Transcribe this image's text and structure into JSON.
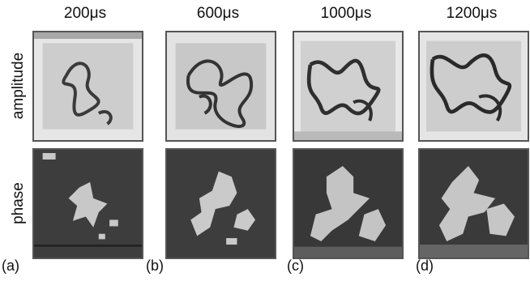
{
  "figure": {
    "columns": [
      {
        "time_label": "200μs",
        "panel_label": "(a)"
      },
      {
        "time_label": "600μs",
        "panel_label": "(b)"
      },
      {
        "time_label": "1000μs",
        "panel_label": "(c)"
      },
      {
        "time_label": "1200μs",
        "panel_label": "(d)"
      }
    ],
    "rows": [
      {
        "label": "amplitude"
      },
      {
        "label": "phase"
      }
    ],
    "colors": {
      "amplitude_background": "#e6e6e6",
      "amplitude_pattern": "#3a3a3a",
      "phase_background": "#3d3d3d",
      "phase_pattern": "#c8c8c8",
      "frame": "#555555"
    }
  }
}
